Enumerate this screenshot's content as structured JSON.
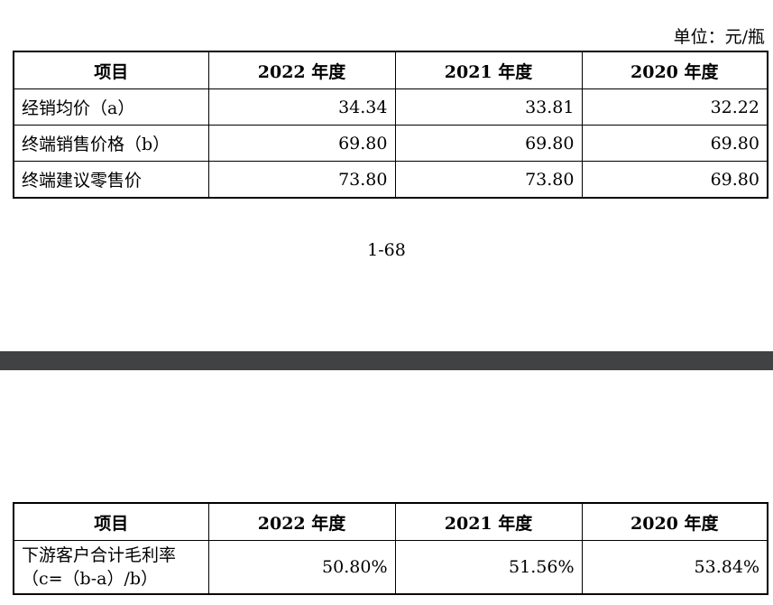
{
  "page1": {
    "unit": "单位：元/瓶",
    "headers": [
      "项目",
      "2022 年度",
      "2021 年度",
      "2020 年度"
    ],
    "rows": [
      {
        "label": "经销均价（a）",
        "v2022": "34.34",
        "v2021": "33.81",
        "v2020": "32.22"
      },
      {
        "label": "终端销售价格（b）",
        "v2022": "69.80",
        "v2021": "69.80",
        "v2020": "69.80"
      },
      {
        "label": "终端建议零售价",
        "v2022": "73.80",
        "v2021": "73.80",
        "v2020": "69.80"
      }
    ],
    "page_number": "1-68"
  },
  "page2": {
    "headers": [
      "项目",
      "2022 年度",
      "2021 年度",
      "2020 年度"
    ],
    "rows": [
      {
        "label_line1": "下游客户合计毛利率",
        "label_line2": "（c=（b-a）/b）",
        "v2022": "50.80%",
        "v2021": "51.56%",
        "v2020": "53.84%"
      }
    ]
  }
}
